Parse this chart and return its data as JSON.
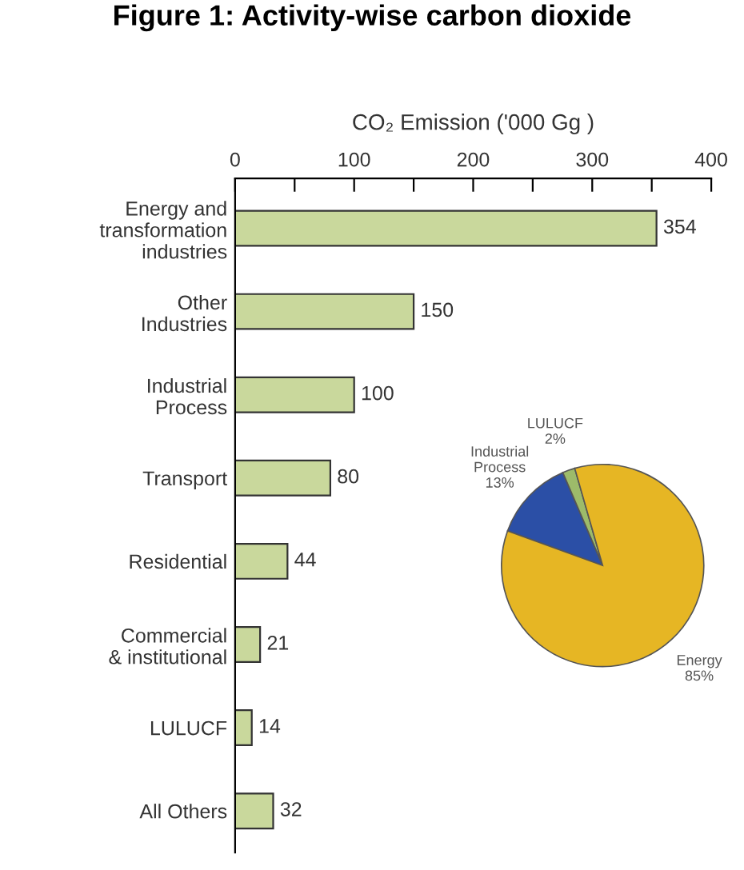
{
  "chart_data": [
    {
      "type": "bar",
      "title": "Figure 1: Activity-wise carbon dioxide",
      "xlabel": "CO₂ Emission ('000 Gg )",
      "orientation": "horizontal",
      "categories": [
        "Energy and\ntransformation\nindustries",
        "Other\nIndustries",
        "Industrial\nProcess",
        "Transport",
        "Residential",
        "Commercial\n& institutional",
        "LULUCF",
        "All Others"
      ],
      "values": [
        354,
        150,
        100,
        80,
        44,
        21,
        14,
        32
      ],
      "color": "#c9d89c",
      "data_labels": true,
      "xlim": [
        0,
        400
      ],
      "xticks": [
        0,
        {
          "value": 50,
          "label": null
        },
        100,
        {
          "value": 150,
          "label": null
        },
        200,
        {
          "value": 250,
          "label": null
        },
        300,
        {
          "value": 350,
          "label": null
        },
        400
      ],
      "grid": false
    },
    {
      "type": "pie",
      "categories": [
        "Industrial\nProcess",
        "LULUCF",
        "Energy"
      ],
      "values": [
        13,
        2,
        85
      ],
      "colors": [
        "#2b4fa6",
        "#9dbb6a",
        "#e6b624"
      ],
      "value_labels": [
        "13%",
        "2%",
        "85%"
      ]
    }
  ]
}
